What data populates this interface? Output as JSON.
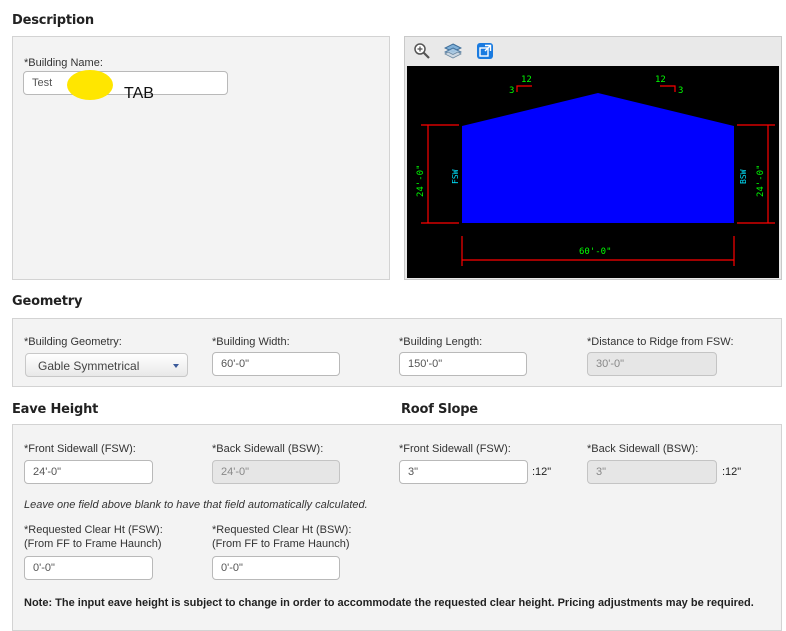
{
  "sections": {
    "description": "Description",
    "geometry": "Geometry",
    "eave_height": "Eave Height",
    "roof_slope": "Roof Slope"
  },
  "description": {
    "building_name_label": "*Building Name:",
    "building_name_value": "Test",
    "annotation_text": "TAB"
  },
  "viewer": {
    "tools": [
      "zoom-icon",
      "layers-icon",
      "expand-icon"
    ],
    "dims": {
      "pitch_left_run": "12",
      "pitch_left_rise": "3",
      "pitch_right_run": "12",
      "pitch_right_rise": "3",
      "left_height": "24'-0\"",
      "right_height": "24'-0\"",
      "width": "60'-0\"",
      "fsw": "FSW",
      "bsw": "BSW"
    },
    "colors": {
      "building_fill": "#0000ff",
      "dim_red": "#ff0000",
      "dim_green": "#00ff00",
      "wall_cyan": "#00e5ff"
    }
  },
  "geometry": {
    "building_geometry_label": "*Building Geometry:",
    "building_geometry_value": "Gable Symmetrical",
    "building_width_label": "*Building Width:",
    "building_width_value": "60'-0\"",
    "building_length_label": "*Building Length:",
    "building_length_value": "150'-0\"",
    "ridge_distance_label": "*Distance to Ridge from FSW:",
    "ridge_distance_value": "30'-0\""
  },
  "eave": {
    "fsw_label": "*Front Sidewall (FSW):",
    "fsw_value": "24'-0\"",
    "bsw_label": "*Back Sidewall (BSW):",
    "bsw_value": "24'-0\"",
    "hint": "Leave one field above blank to have that field automatically calculated.",
    "clear_fsw_label_1": "*Requested Clear Ht (FSW):",
    "clear_fsw_label_2": "(From FF to Frame Haunch)",
    "clear_fsw_value": "0'-0\"",
    "clear_bsw_label_1": "*Requested Clear Ht (BSW):",
    "clear_bsw_label_2": "(From FF to Frame Haunch)",
    "clear_bsw_value": "0'-0\"",
    "note": "Note: The input eave height is subject to change in order to accommodate the requested clear height. Pricing adjustments may be required."
  },
  "roof": {
    "fsw_label": "*Front Sidewall (FSW):",
    "fsw_value": "3\"",
    "fsw_unit": ":12\"",
    "bsw_label": "*Back Sidewall (BSW):",
    "bsw_value": "3\"",
    "bsw_unit": ":12\""
  }
}
